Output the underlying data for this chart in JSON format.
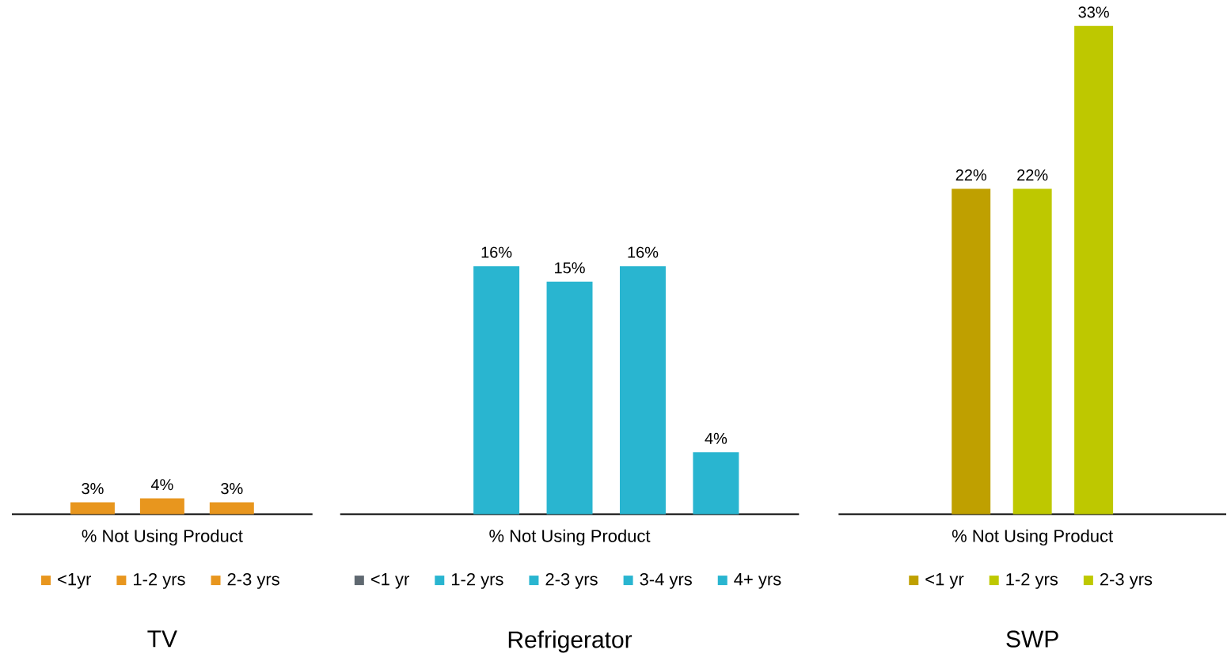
{
  "chart_data": [
    {
      "type": "bar",
      "title": "TV",
      "xlabel": "% Not Using Product",
      "tick_labels": false,
      "categories": [
        "<1yr",
        "1-2 yrs",
        "2-3 yrs"
      ],
      "colors": [
        "#e8961e",
        "#e8961e",
        "#e8961e"
      ],
      "values": [
        3,
        4,
        3
      ],
      "value_labels": [
        "3%",
        "4%",
        "3%"
      ]
    },
    {
      "type": "bar",
      "title": "Refrigerator",
      "xlabel": "% Not Using Product",
      "tick_labels": false,
      "categories": [
        "<1 yr",
        "1-2 yrs",
        "2-3 yrs",
        "3-4 yrs",
        "4+ yrs"
      ],
      "colors": [
        "#5f6870",
        "#29b5d0",
        "#29b5d0",
        "#29b5d0",
        "#29b5d0"
      ],
      "values": [
        null,
        16,
        15,
        16,
        4
      ],
      "value_labels": [
        null,
        "16%",
        "15%",
        "16%",
        "4%"
      ]
    },
    {
      "type": "bar",
      "title": "SWP",
      "xlabel": "% Not Using Product",
      "tick_labels": false,
      "categories": [
        "<1 yr",
        "1-2 yrs",
        "2-3 yrs"
      ],
      "colors": [
        "#bfa000",
        "#bec800",
        "#bec800"
      ],
      "values": [
        22,
        22,
        33
      ],
      "value_labels": [
        "22%",
        "22%",
        "33%"
      ]
    }
  ]
}
